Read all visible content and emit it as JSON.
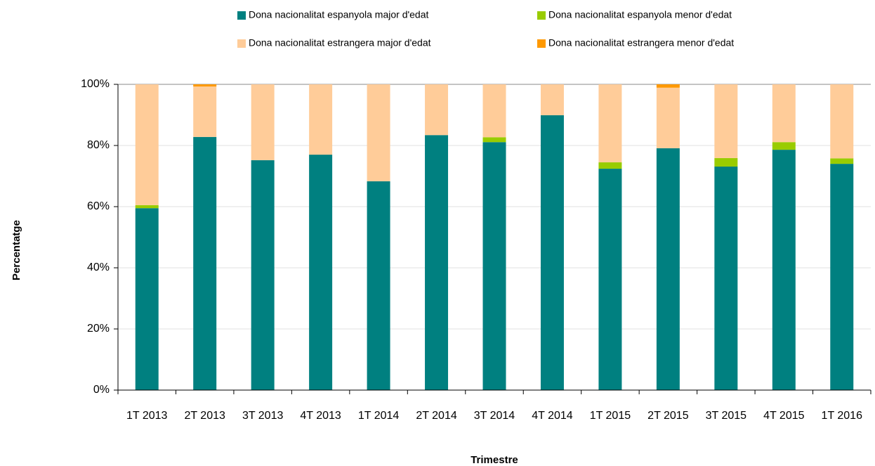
{
  "chart_data": {
    "type": "stacked_bar",
    "x_label": "Trimestre",
    "y_label": "Percentatge",
    "categories": [
      "1T 2013",
      "2T 2013",
      "3T 2013",
      "4T 2013",
      "1T 2014",
      "2T 2014",
      "3T 2014",
      "4T 2014",
      "1T 2015",
      "2T 2015",
      "3T 2015",
      "4T 2015",
      "1T 2016"
    ],
    "series": [
      {
        "name": "Dona nacionalitat espanyola major d'edat",
        "color": "#008080",
        "values": [
          59.5,
          82.8,
          75.2,
          77,
          68.3,
          83.4,
          81.1,
          89.9,
          72.4,
          79.1,
          73.1,
          78.6,
          74
        ]
      },
      {
        "name": "Dona nacionalitat espanyola menor d'edat",
        "color": "#99cc00",
        "values": [
          1,
          0,
          0,
          0,
          0,
          0,
          1.6,
          0,
          2.1,
          0,
          2.8,
          2.5,
          1.8
        ]
      },
      {
        "name": "Dona nacionalitat estrangera major d'edat",
        "color": "#ffcc99",
        "values": [
          39.5,
          16.5,
          24.8,
          23,
          31.7,
          16.6,
          17.3,
          10.1,
          25.5,
          19.8,
          24.1,
          18.9,
          24.2
        ]
      },
      {
        "name": "Dona nacionalitat estrangera menor d'edat",
        "color": "#ff9900",
        "values": [
          0,
          0.7,
          0,
          0,
          0,
          0,
          0,
          0,
          0,
          1.1,
          0,
          0,
          0
        ]
      }
    ],
    "ylim": [
      0,
      100
    ],
    "yticks": [
      {
        "value": 0,
        "label": "0%"
      },
      {
        "value": 20,
        "label": "20%"
      },
      {
        "value": 40,
        "label": "40%"
      },
      {
        "value": 60,
        "label": "60%"
      },
      {
        "value": 80,
        "label": "80%"
      },
      {
        "value": 100,
        "label": "100%"
      }
    ],
    "grid": true,
    "legend": "top"
  }
}
